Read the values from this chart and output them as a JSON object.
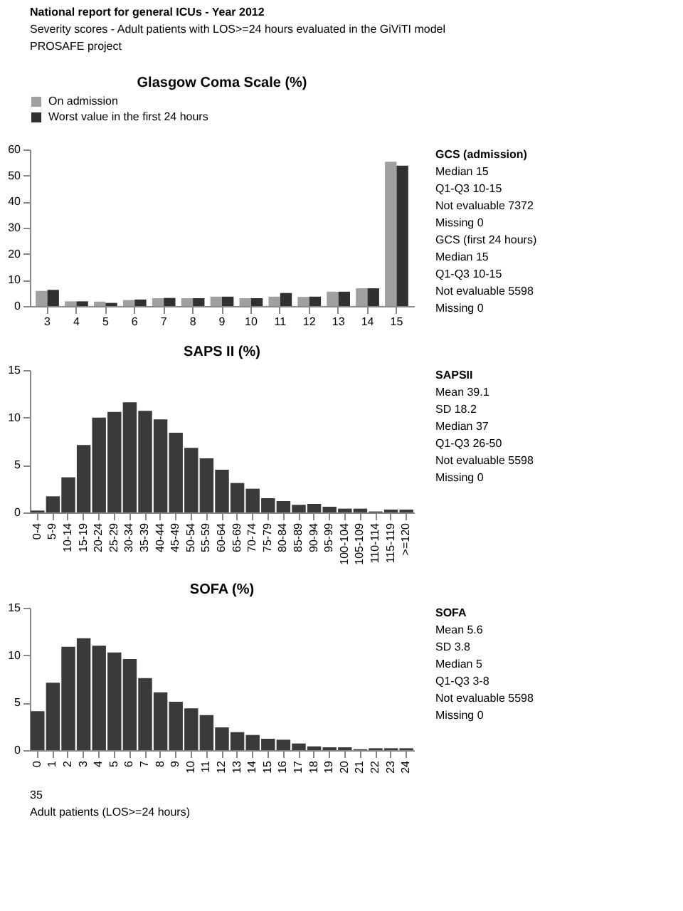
{
  "chart_data": [
    {
      "type": "other",
      "title": "National report for general ICUs - Year 2012",
      "subtitle": "Severity scores - Adult patients with LOS>=24 hours evaluated in the GiViTI model",
      "annotations": [
        "PROSAFE project"
      ]
    },
    {
      "type": "bar",
      "title": "Glasgow Coma Scale (%)",
      "categories": [
        "3",
        "4",
        "5",
        "6",
        "7",
        "8",
        "9",
        "10",
        "11",
        "12",
        "13",
        "14",
        "15"
      ],
      "series": [
        {
          "name": "On admission",
          "color": "#a0a0a0",
          "values": [
            5.8,
            1.8,
            1.7,
            2.3,
            3.0,
            3.0,
            3.6,
            3.0,
            3.6,
            3.5,
            5.5,
            6.8,
            55.3
          ]
        },
        {
          "name": "Worst value in the first 24 hours",
          "color": "#303030",
          "values": [
            6.2,
            1.8,
            1.2,
            2.5,
            3.1,
            3.0,
            3.6,
            3.0,
            5.0,
            3.6,
            5.5,
            6.8,
            53.8
          ]
        }
      ],
      "ylim": [
        0,
        60
      ],
      "yticks": [
        0,
        10,
        20,
        30,
        40,
        50,
        60
      ],
      "grid": false,
      "legend": "top"
    },
    {
      "type": "other",
      "title": "GCS (admission)",
      "annotations": [
        "Median 15",
        "Q1-Q3 10-15",
        "Not evaluable 7372",
        "Missing 0",
        "GCS (first 24 hours)",
        "Median 15",
        "Q1-Q3 10-15",
        "Not evaluable 5598",
        "Missing 0"
      ]
    },
    {
      "type": "bar",
      "title": "SAPS II (%)",
      "categories": [
        "0-4",
        "5-9",
        "10-14",
        "15-19",
        "20-24",
        "25-29",
        "30-34",
        "35-39",
        "40-44",
        "45-49",
        "50-54",
        "55-59",
        "60-64",
        "65-69",
        "70-74",
        "75-79",
        "80-84",
        "85-89",
        "90-94",
        "95-99",
        "100-104",
        "105-109",
        "110-114",
        "115-119",
        ">=120"
      ],
      "series": [
        {
          "color": "#3a3a3a",
          "values": [
            0.2,
            1.7,
            3.7,
            7.1,
            10.0,
            10.6,
            11.6,
            10.7,
            9.8,
            8.4,
            6.8,
            5.7,
            4.5,
            3.1,
            2.5,
            1.5,
            1.2,
            0.8,
            0.9,
            0.6,
            0.4,
            0.4,
            0.1,
            0.3,
            0.3
          ]
        }
      ],
      "ylim": [
        0,
        15
      ],
      "yticks": [
        0,
        5,
        10,
        15
      ],
      "grid": false
    },
    {
      "type": "other",
      "title": "SAPSII",
      "annotations": [
        "Mean 39.1",
        "SD 18.2",
        "Median 37",
        "Q1-Q3 26-50",
        "Not evaluable 5598",
        "Missing 0"
      ]
    },
    {
      "type": "bar",
      "title": "SOFA (%)",
      "categories": [
        "0",
        "1",
        "2",
        "3",
        "4",
        "5",
        "6",
        "7",
        "8",
        "9",
        "10",
        "11",
        "12",
        "13",
        "14",
        "15",
        "16",
        "17",
        "18",
        "19",
        "20",
        "21",
        "22",
        "23",
        "24"
      ],
      "series": [
        {
          "color": "#3a3a3a",
          "values": [
            4.1,
            7.1,
            10.9,
            11.8,
            11.0,
            10.3,
            9.6,
            7.6,
            6.1,
            5.1,
            4.4,
            3.7,
            2.4,
            1.9,
            1.6,
            1.2,
            1.1,
            0.7,
            0.4,
            0.3,
            0.3,
            0.1,
            0.2,
            0.2,
            0.2
          ]
        }
      ],
      "ylim": [
        0,
        15
      ],
      "yticks": [
        0,
        5,
        10,
        15
      ],
      "grid": false
    },
    {
      "type": "other",
      "title": "SOFA",
      "annotations": [
        "Mean 5.6",
        "SD 3.8",
        "Median 5",
        "Q1-Q3 3-8",
        "Not evaluable 5598",
        "Missing 0"
      ]
    },
    {
      "type": "other",
      "annotations": [
        "35",
        "Adult patients (LOS>=24 hours)"
      ]
    }
  ]
}
